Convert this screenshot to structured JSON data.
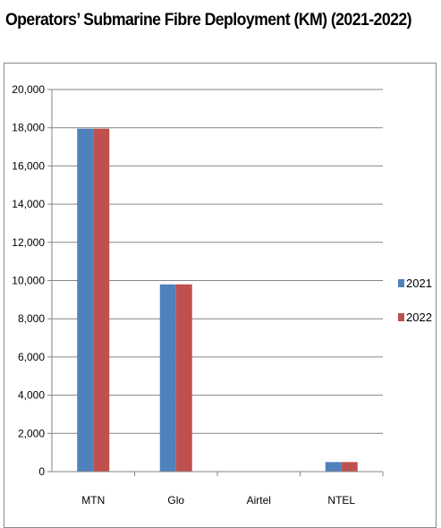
{
  "chart_data": {
    "type": "bar",
    "title": "Operators’ Submarine Fibre Deployment (KM) (2021-2022)",
    "categories": [
      "MTN",
      "Glo",
      "Airtel",
      "NTEL"
    ],
    "series": [
      {
        "name": "2021",
        "values": [
          17950,
          9800,
          0,
          500
        ],
        "color": "#4F81BD"
      },
      {
        "name": "2022",
        "values": [
          17950,
          9800,
          0,
          500
        ],
        "color": "#C0504D"
      }
    ],
    "yticks": [
      "0",
      "2,000",
      "4,000",
      "6,000",
      "8,000",
      "10,000",
      "12,000",
      "14,000",
      "16,000",
      "18,000",
      "20,000"
    ],
    "ylim": [
      0,
      20000
    ],
    "ystep": 2000,
    "grid": true,
    "legend_position": "right"
  }
}
